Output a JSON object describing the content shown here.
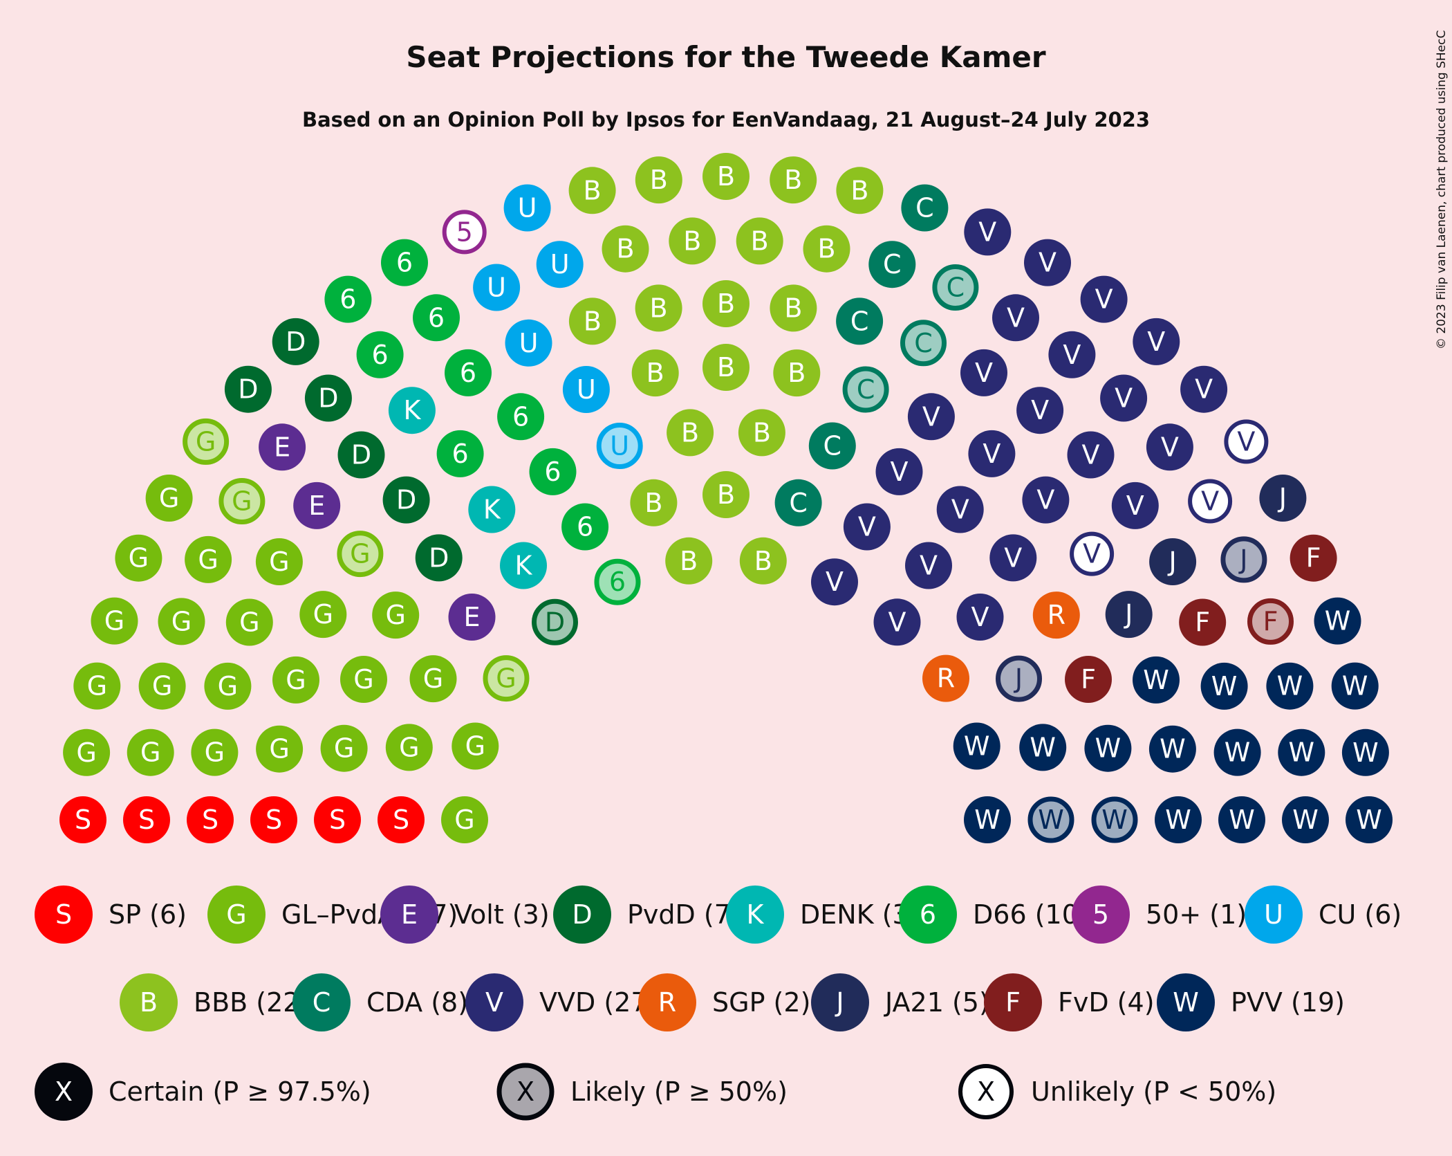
{
  "chart_data": {
    "type": "parliament",
    "title": "Seat Projections for the Tweede Kamer",
    "subtitle": "Based on an Opinion Poll by Ipsos for EenVandaag, 21 August–24 July 2023",
    "copyright": "© 2023 Filip van Laenen, chart produced using SHecC",
    "total_seats": 150,
    "parties": [
      {
        "name": "SP",
        "letter": "S",
        "color": "#ff0000",
        "seats": 6,
        "label": "SP (6)",
        "certain": 6,
        "likely": 0,
        "unlikely": 0
      },
      {
        "name": "GL–PvdA",
        "letter": "G",
        "color": "#76bc0d",
        "seats": 27,
        "label": "GL–PvdA (27)",
        "certain": 23,
        "likely": 4,
        "unlikely": 0
      },
      {
        "name": "Volt",
        "letter": "E",
        "color": "#5c2d91",
        "seats": 3,
        "label": "Volt (3)",
        "certain": 3,
        "likely": 0,
        "unlikely": 0
      },
      {
        "name": "PvdD",
        "letter": "D",
        "color": "#006a2e",
        "seats": 7,
        "label": "PvdD (7)",
        "certain": 6,
        "likely": 1,
        "unlikely": 0
      },
      {
        "name": "DENK",
        "letter": "K",
        "color": "#00b7b2",
        "seats": 3,
        "label": "DENK (3)",
        "certain": 3,
        "likely": 0,
        "unlikely": 0
      },
      {
        "name": "D66",
        "letter": "6",
        "color": "#00b13d",
        "seats": 10,
        "label": "D66 (10)",
        "certain": 9,
        "likely": 1,
        "unlikely": 0
      },
      {
        "name": "50+",
        "letter": "5",
        "color": "#92278f",
        "seats": 1,
        "label": "50+ (1)",
        "certain": 0,
        "likely": 0,
        "unlikely": 1
      },
      {
        "name": "CU",
        "letter": "U",
        "color": "#00a7eb",
        "seats": 6,
        "label": "CU (6)",
        "certain": 5,
        "likely": 1,
        "unlikely": 0
      },
      {
        "name": "BBB",
        "letter": "B",
        "color": "#8dc21f",
        "seats": 22,
        "label": "BBB (22)",
        "certain": 22,
        "likely": 0,
        "unlikely": 0
      },
      {
        "name": "CDA",
        "letter": "C",
        "color": "#007b5f",
        "seats": 8,
        "label": "CDA (8)",
        "certain": 5,
        "likely": 3,
        "unlikely": 0
      },
      {
        "name": "VVD",
        "letter": "V",
        "color": "#2a2a72",
        "seats": 27,
        "label": "VVD (27)",
        "certain": 24,
        "likely": 0,
        "unlikely": 3
      },
      {
        "name": "SGP",
        "letter": "R",
        "color": "#ea5b0c",
        "seats": 2,
        "label": "SGP (2)",
        "certain": 2,
        "likely": 0,
        "unlikely": 0
      },
      {
        "name": "JA21",
        "letter": "J",
        "color": "#212c5a",
        "seats": 5,
        "label": "JA21 (5)",
        "certain": 3,
        "likely": 2,
        "unlikely": 0
      },
      {
        "name": "FvD",
        "letter": "F",
        "color": "#811e1e",
        "seats": 4,
        "label": "FvD (4)",
        "certain": 3,
        "likely": 1,
        "unlikely": 0
      },
      {
        "name": "PVV",
        "letter": "W",
        "color": "#002759",
        "seats": 19,
        "label": "PVV (19)",
        "certain": 17,
        "likely": 2,
        "unlikely": 0
      }
    ],
    "probability_legend": [
      {
        "letter": "X",
        "label": "Certain (P ≥ 97.5%)",
        "style": "certain"
      },
      {
        "letter": "X",
        "label": "Likely (P ≥ 50%)",
        "style": "likely"
      },
      {
        "letter": "X",
        "label": "Unlikely (P < 50%)",
        "style": "unlikely"
      }
    ]
  }
}
